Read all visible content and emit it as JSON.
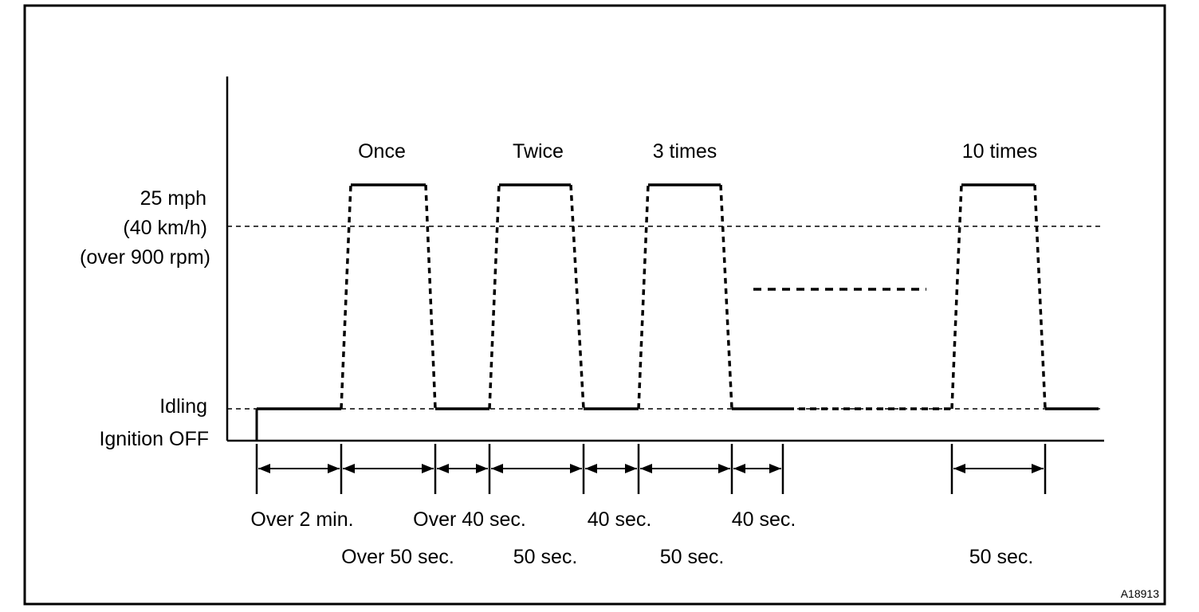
{
  "pulse_labels": {
    "once": "Once",
    "twice": "Twice",
    "three": "3 times",
    "ten": "10 times"
  },
  "y_labels": {
    "speed_mph": "25 mph",
    "speed_kmh": "(40 km/h)",
    "rpm": "(over 900 rpm)",
    "idling": "Idling",
    "ignition_off": "Ignition OFF"
  },
  "interval_labels_row1": {
    "over_2_min": "Over 2 min.",
    "over_40_sec": "Over 40 sec.",
    "sec40_a": "40 sec.",
    "sec40_b": "40 sec."
  },
  "interval_labels_row2": {
    "over_50_sec": "Over 50 sec.",
    "sec50_a": "50 sec.",
    "sec50_b": "50 sec.",
    "sec50_c": "50 sec."
  },
  "figure_code": "A18913"
}
